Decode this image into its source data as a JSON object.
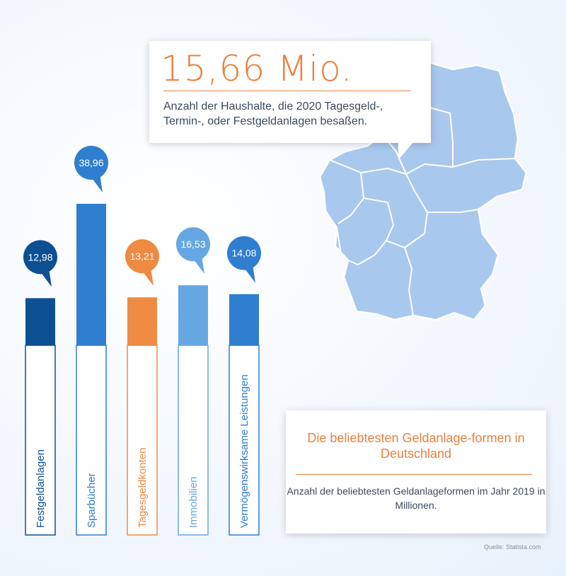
{
  "headline": {
    "value": "15,66 Mio.",
    "text": "Anzahl der Haushalte, die 2020 Tagesgeld-, Termin-, oder Festgeldanlagen besaßen."
  },
  "info": {
    "title": "Die beliebtesten Geldanlage-formen in Deutschland",
    "text": "Anzahl der beliebtesten Geldanlageformen im Jahr 2019 in Millionen."
  },
  "source": "Quelle: Statista.com",
  "chart_data": {
    "type": "bar",
    "title": "Die beliebtesten Geldanlage-formen in Deutschland",
    "subtitle": "Anzahl der beliebtesten Geldanlageformen im Jahr 2019 in Millionen.",
    "categories": [
      "Festgeldanlagen",
      "Sparbücher",
      "Tagesgeldkonten",
      "Immobilien",
      "Vermögenswirksame Leistungen"
    ],
    "values": [
      12.98,
      38.96,
      13.21,
      16.53,
      14.08
    ],
    "labels": [
      "12,98",
      "38,96",
      "13,21",
      "16,53",
      "14,08"
    ],
    "colors": [
      "#0d4f93",
      "#2f7ed0",
      "#ef8a42",
      "#66a7e3",
      "#2f7ed0"
    ]
  },
  "map_color": "#a9c8ed"
}
